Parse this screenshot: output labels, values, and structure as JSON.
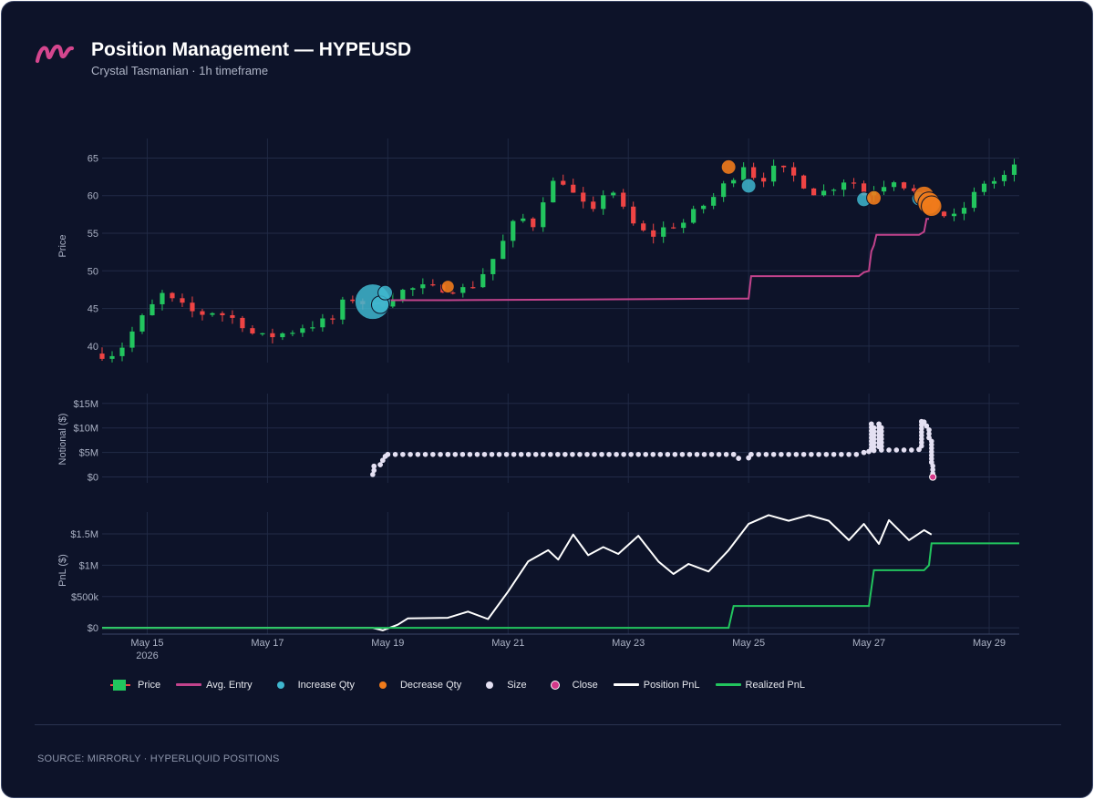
{
  "header": {
    "title": "Position Management — HYPEUSD",
    "subtitle": "Crystal Tasmanian · 1h timeframe"
  },
  "footer": {
    "source": "SOURCE: MIRRORLY · HYPERLIQUID POSITIONS"
  },
  "colors": {
    "background": "#0d1329",
    "up": "#22c55e",
    "down": "#ef4444",
    "avg_entry": "#c2438c",
    "increase": "#3fb7cf",
    "decrease": "#f07b1b",
    "size": "#e4e0f2",
    "close": "#d5398a",
    "position_pnl": "#ffffff",
    "realized_pnl": "#22c55e",
    "logo": "#d4468e"
  },
  "legend": [
    {
      "label": "Price",
      "kind": "candle"
    },
    {
      "label": "Avg. Entry",
      "kind": "line",
      "color": "#c2438c"
    },
    {
      "label": "Increase Qty",
      "kind": "dot",
      "color": "#3fb7cf"
    },
    {
      "label": "Decrease Qty",
      "kind": "dot",
      "color": "#f07b1b"
    },
    {
      "label": "Size",
      "kind": "dot",
      "color": "#e4e0f2"
    },
    {
      "label": "Close",
      "kind": "ring",
      "color": "#d5398a"
    },
    {
      "label": "Position PnL",
      "kind": "line",
      "color": "#ffffff"
    },
    {
      "label": "Realized PnL",
      "kind": "line",
      "color": "#22c55e"
    }
  ],
  "chart_data": {
    "type": "candlestick",
    "x_start": "2026-05-14T06:00",
    "x_end": "2026-05-29T12:00",
    "x_ticks": [
      {
        "date": "2026-05-15",
        "label": "May 15",
        "sublabel": "2026"
      },
      {
        "date": "2026-05-17",
        "label": "May 17"
      },
      {
        "date": "2026-05-19",
        "label": "May 19"
      },
      {
        "date": "2026-05-21",
        "label": "May 21"
      },
      {
        "date": "2026-05-23",
        "label": "May 23"
      },
      {
        "date": "2026-05-25",
        "label": "May 25"
      },
      {
        "date": "2026-05-27",
        "label": "May 27"
      },
      {
        "date": "2026-05-29",
        "label": "May 29"
      }
    ],
    "price_panel": {
      "ylabel": "Price",
      "ylim": [
        37.8,
        67.6
      ],
      "ticks": [
        40,
        45,
        50,
        55,
        60,
        65
      ],
      "close_path": [
        [
          "2026-05-14T06:00",
          39.0
        ],
        [
          "2026-05-14T12:00",
          39.1
        ],
        [
          "2026-05-14T20:00",
          42.8
        ],
        [
          "2026-05-15T00:00",
          44.5
        ],
        [
          "2026-05-15T06:00",
          46.8
        ],
        [
          "2026-05-15T12:00",
          45.5
        ],
        [
          "2026-05-15T20:00",
          44.2
        ],
        [
          "2026-05-16T02:00",
          44.6
        ],
        [
          "2026-05-16T08:00",
          44.0
        ],
        [
          "2026-05-16T14:00",
          43.0
        ],
        [
          "2026-05-16T20:00",
          41.0
        ],
        [
          "2026-05-17T02:00",
          41.4
        ],
        [
          "2026-05-17T08:00",
          41.8
        ],
        [
          "2026-05-17T14:00",
          42.6
        ],
        [
          "2026-05-17T20:00",
          43.0
        ],
        [
          "2026-05-18T02:00",
          43.5
        ],
        [
          "2026-05-18T08:00",
          46.6
        ],
        [
          "2026-05-18T14:00",
          45.8
        ],
        [
          "2026-05-18T20:00",
          45.2
        ],
        [
          "2026-05-19T00:00",
          46.5
        ],
        [
          "2026-05-19T06:00",
          47.3
        ],
        [
          "2026-05-19T12:00",
          47.7
        ],
        [
          "2026-05-19T18:00",
          47.6
        ],
        [
          "2026-05-20T00:00",
          47.9
        ],
        [
          "2026-05-20T06:00",
          47.5
        ],
        [
          "2026-05-20T10:00",
          48.2
        ],
        [
          "2026-05-20T16:00",
          50.5
        ],
        [
          "2026-05-20T22:00",
          53.8
        ],
        [
          "2026-05-21T04:00",
          57.2
        ],
        [
          "2026-05-21T10:00",
          56.2
        ],
        [
          "2026-05-21T16:00",
          61.5
        ],
        [
          "2026-05-21T22:00",
          62.0
        ],
        [
          "2026-05-22T04:00",
          59.2
        ],
        [
          "2026-05-22T10:00",
          57.6
        ],
        [
          "2026-05-22T16:00",
          61.8
        ],
        [
          "2026-05-22T22:00",
          58.0
        ],
        [
          "2026-05-23T04:00",
          55.2
        ],
        [
          "2026-05-23T10:00",
          54.8
        ],
        [
          "2026-05-23T16:00",
          56.0
        ],
        [
          "2026-05-23T22:00",
          56.4
        ],
        [
          "2026-05-24T04:00",
          58.2
        ],
        [
          "2026-05-24T10:00",
          59.8
        ],
        [
          "2026-05-24T16:00",
          62.0
        ],
        [
          "2026-05-24T22:00",
          64.2
        ],
        [
          "2026-05-25T04:00",
          62.0
        ],
        [
          "2026-05-25T10:00",
          63.4
        ],
        [
          "2026-05-25T16:00",
          63.0
        ],
        [
          "2026-05-25T22:00",
          61.6
        ],
        [
          "2026-05-26T04:00",
          60.1
        ],
        [
          "2026-05-26T10:00",
          61.3
        ],
        [
          "2026-05-26T16:00",
          62.5
        ],
        [
          "2026-05-26T22:00",
          60.2
        ],
        [
          "2026-05-27T04:00",
          61.3
        ],
        [
          "2026-05-27T10:00",
          62.3
        ],
        [
          "2026-05-27T16:00",
          61.0
        ],
        [
          "2026-05-27T22:00",
          59.2
        ],
        [
          "2026-05-28T04:00",
          57.6
        ],
        [
          "2026-05-28T10:00",
          57.0
        ],
        [
          "2026-05-28T16:00",
          59.2
        ],
        [
          "2026-05-28T22:00",
          61.8
        ],
        [
          "2026-05-29T04:00",
          62.0
        ],
        [
          "2026-05-29T10:00",
          63.6
        ],
        [
          "2026-05-29T12:00",
          65.3
        ]
      ],
      "avg_entry": [
        [
          "2026-05-18T18:00",
          45.6
        ],
        [
          "2026-05-18T21:00",
          45.7
        ],
        [
          "2026-05-18T23:00",
          46.1
        ],
        [
          "2026-05-20T00:00",
          46.1
        ],
        [
          "2026-05-24T20:00",
          46.3
        ],
        [
          "2026-05-25T00:00",
          46.3
        ],
        [
          "2026-05-25T01:00",
          49.3
        ],
        [
          "2026-05-26T20:00",
          49.3
        ],
        [
          "2026-05-26T22:00",
          49.8
        ],
        [
          "2026-05-27T00:00",
          50.0
        ],
        [
          "2026-05-27T01:00",
          52.6
        ],
        [
          "2026-05-27T02:00",
          53.4
        ],
        [
          "2026-05-27T03:00",
          54.8
        ],
        [
          "2026-05-27T20:00",
          54.8
        ],
        [
          "2026-05-27T22:00",
          55.2
        ],
        [
          "2026-05-27T23:00",
          56.9
        ],
        [
          "2026-05-28T00:00",
          56.9
        ]
      ],
      "increase_trades": [
        {
          "t": "2026-05-18T18:00",
          "price": 45.9,
          "qty": 5
        },
        {
          "t": "2026-05-18T21:00",
          "price": 45.5,
          "qty": 2
        },
        {
          "t": "2026-05-18T23:00",
          "price": 47.1,
          "qty": 1.5
        },
        {
          "t": "2026-05-25T00:00",
          "price": 61.3,
          "qty": 1.5
        },
        {
          "t": "2026-05-26T22:00",
          "price": 59.5,
          "qty": 1.5
        },
        {
          "t": "2026-05-27T20:00",
          "price": 59.6,
          "qty": 1.5
        }
      ],
      "decrease_trades": [
        {
          "t": "2026-05-20T00:00",
          "price": 47.9,
          "qty": 1.2
        },
        {
          "t": "2026-05-24T16:00",
          "price": 63.8,
          "qty": 1.5
        },
        {
          "t": "2026-05-27T02:00",
          "price": 59.7,
          "qty": 1.5
        },
        {
          "t": "2026-05-27T22:00",
          "price": 59.9,
          "qty": 2.5
        },
        {
          "t": "2026-05-28T00:00",
          "price": 59.0,
          "qty": 2.8
        },
        {
          "t": "2026-05-28T01:00",
          "price": 58.6,
          "qty": 2.5
        }
      ]
    },
    "notional_panel": {
      "ylabel": "Notional ($)",
      "ylim": [
        -1.2,
        17
      ],
      "ticks": [
        0,
        5,
        10,
        15
      ],
      "tick_labels": [
        "$0",
        "$5M",
        "$10M",
        "$15M"
      ],
      "unit": "$M",
      "size": [
        [
          "2026-05-18T18:00",
          0.5
        ],
        [
          "2026-05-18T18:30",
          2.2
        ],
        [
          "2026-05-18T21:00",
          2.5
        ],
        [
          "2026-05-18T22:00",
          3.4
        ],
        [
          "2026-05-18T23:00",
          4.2
        ],
        [
          "2026-05-19T00:00",
          4.6
        ],
        [
          "2026-05-20T00:00",
          4.6
        ],
        [
          "2026-05-24T18:00",
          4.6
        ],
        [
          "2026-05-24T20:00",
          3.8
        ],
        [
          "2026-05-25T00:00",
          3.9
        ],
        [
          "2026-05-25T01:00",
          4.6
        ],
        [
          "2026-05-26T22:00",
          5.0
        ],
        [
          "2026-05-27T00:00",
          5.2
        ],
        [
          "2026-05-27T01:00",
          10.8
        ],
        [
          "2026-05-27T02:00",
          5.4
        ],
        [
          "2026-05-27T04:00",
          10.8
        ],
        [
          "2026-05-27T05:00",
          5.5
        ],
        [
          "2026-05-27T20:00",
          5.6
        ],
        [
          "2026-05-27T21:00",
          11.3
        ],
        [
          "2026-05-27T22:00",
          11.2
        ],
        [
          "2026-05-27T23:00",
          10.4
        ],
        [
          "2026-05-28T00:00",
          8.0
        ],
        [
          "2026-05-28T01:00",
          3.0
        ],
        [
          "2026-05-28T01:30",
          0.0
        ]
      ],
      "close": {
        "t": "2026-05-28T01:30",
        "value": 0.0
      }
    },
    "pnl_panel": {
      "ylabel": "PnL ($)",
      "ylim": [
        -0.1,
        1.85
      ],
      "ticks": [
        0,
        0.5,
        1,
        1.5
      ],
      "tick_labels": [
        "$0",
        "$500k",
        "$1M",
        "$1.5M"
      ],
      "unit": "$M",
      "position_pnl": [
        [
          "2026-05-14T06:00",
          0.0
        ],
        [
          "2026-05-18T18:00",
          0.0
        ],
        [
          "2026-05-18T22:00",
          -0.04
        ],
        [
          "2026-05-19T04:00",
          0.05
        ],
        [
          "2026-05-19T08:00",
          0.15
        ],
        [
          "2026-05-20T00:00",
          0.16
        ],
        [
          "2026-05-20T08:00",
          0.26
        ],
        [
          "2026-05-20T16:00",
          0.14
        ],
        [
          "2026-05-21T00:00",
          0.58
        ],
        [
          "2026-05-21T08:00",
          1.06
        ],
        [
          "2026-05-21T16:00",
          1.24
        ],
        [
          "2026-05-21T20:00",
          1.09
        ],
        [
          "2026-05-22T02:00",
          1.49
        ],
        [
          "2026-05-22T08:00",
          1.16
        ],
        [
          "2026-05-22T14:00",
          1.29
        ],
        [
          "2026-05-22T20:00",
          1.18
        ],
        [
          "2026-05-23T04:00",
          1.47
        ],
        [
          "2026-05-23T12:00",
          1.06
        ],
        [
          "2026-05-23T18:00",
          0.86
        ],
        [
          "2026-05-24T00:00",
          1.02
        ],
        [
          "2026-05-24T08:00",
          0.9
        ],
        [
          "2026-05-24T16:00",
          1.24
        ],
        [
          "2026-05-25T00:00",
          1.66
        ],
        [
          "2026-05-25T08:00",
          1.8
        ],
        [
          "2026-05-25T16:00",
          1.71
        ],
        [
          "2026-05-26T00:00",
          1.8
        ],
        [
          "2026-05-26T08:00",
          1.71
        ],
        [
          "2026-05-26T16:00",
          1.4
        ],
        [
          "2026-05-26T22:00",
          1.66
        ],
        [
          "2026-05-27T04:00",
          1.34
        ],
        [
          "2026-05-27T08:00",
          1.72
        ],
        [
          "2026-05-27T16:00",
          1.4
        ],
        [
          "2026-05-27T22:00",
          1.56
        ],
        [
          "2026-05-28T01:00",
          1.49
        ]
      ],
      "realized_pnl": [
        [
          "2026-05-14T06:00",
          0.0
        ],
        [
          "2026-05-24T16:00",
          0.0
        ],
        [
          "2026-05-24T18:00",
          0.35
        ],
        [
          "2026-05-27T00:00",
          0.35
        ],
        [
          "2026-05-27T02:00",
          0.92
        ],
        [
          "2026-05-27T22:00",
          0.92
        ],
        [
          "2026-05-28T00:00",
          1.0
        ],
        [
          "2026-05-28T01:00",
          1.35
        ],
        [
          "2026-05-29T12:00",
          1.35
        ]
      ]
    }
  }
}
